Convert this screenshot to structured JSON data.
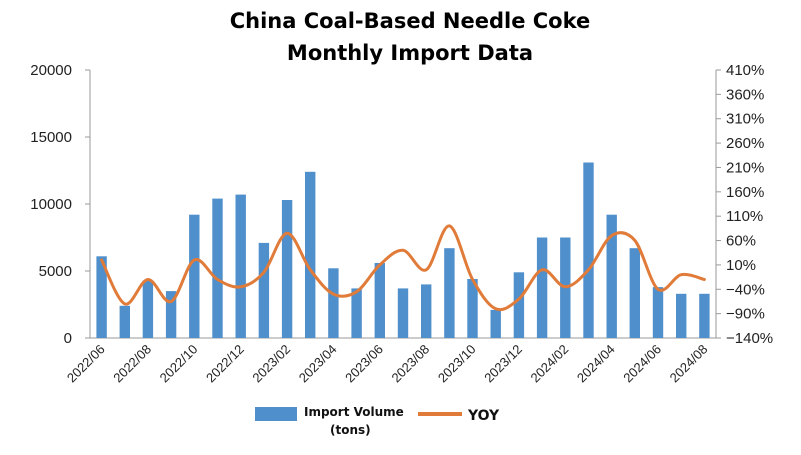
{
  "chart_data": {
    "type": "bar+line",
    "title_lines": [
      "China Coal-Based Needle Coke",
      "Monthly Import Data"
    ],
    "x": [
      "2022/06",
      "2022/07",
      "2022/08",
      "2022/09",
      "2022/10",
      "2022/11",
      "2022/12",
      "2023/01",
      "2023/02",
      "2023/03",
      "2023/04",
      "2023/05",
      "2023/06",
      "2023/07",
      "2023/08",
      "2023/09",
      "2023/10",
      "2023/11",
      "2023/12",
      "2024/01",
      "2024/02",
      "2024/03",
      "2024/04",
      "2024/05",
      "2024/06",
      "2024/07",
      "2024/08"
    ],
    "x_tick_labels": [
      "2022/06",
      "2022/08",
      "2022/10",
      "2022/12",
      "2023/02",
      "2023/04",
      "2023/06",
      "2023/08",
      "2023/10",
      "2023/12",
      "2024/02",
      "2024/04",
      "2024/06",
      "2024/08"
    ],
    "series": [
      {
        "name": "Import Volume",
        "name_line2": "(tons)",
        "type": "bar",
        "axis": "left",
        "color": "#4f8fcc",
        "values": [
          6100,
          2400,
          4300,
          3500,
          9200,
          10400,
          10700,
          7100,
          10300,
          12400,
          5200,
          3700,
          5600,
          3700,
          4000,
          6700,
          4400,
          2100,
          4900,
          7500,
          7500,
          13100,
          9200,
          6700,
          3800,
          3300,
          3300
        ]
      },
      {
        "name": "YOY",
        "type": "line",
        "axis": "right",
        "color": "#e07b39",
        "values": [
          20,
          -70,
          -20,
          -65,
          20,
          -20,
          -35,
          -5,
          75,
          0,
          -50,
          -45,
          10,
          40,
          0,
          90,
          -20,
          -80,
          -60,
          0,
          -35,
          0,
          70,
          60,
          -40,
          -10,
          -20
        ]
      }
    ],
    "y_left": {
      "min": 0,
      "max": 20000,
      "ticks": [
        "0",
        "5000",
        "10000",
        "15000",
        "20000"
      ]
    },
    "y_right": {
      "min": -140,
      "max": 410,
      "ticks": [
        "-140%",
        "-90%",
        "-40%",
        "10%",
        "60%",
        "110%",
        "160%",
        "210%",
        "260%",
        "310%",
        "360%",
        "410%"
      ]
    },
    "legend_position": "bottom",
    "grid": false
  }
}
